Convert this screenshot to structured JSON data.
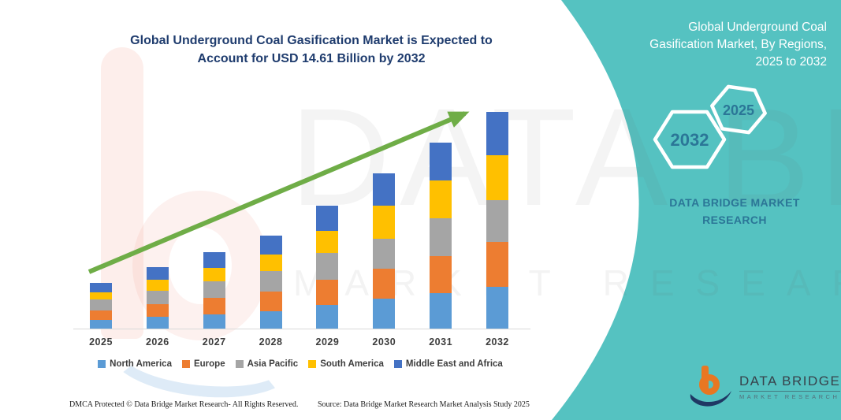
{
  "chart_data": {
    "type": "bar",
    "stacked": true,
    "title": "Global Underground Coal Gasification Market is Expected to Account for USD 14.61 Billion by 2032",
    "title_lines": [
      "Global Underground Coal Gasification Market is Expected to",
      "Account for USD 14.61 Billion by 2032"
    ],
    "unit": "USD Billion",
    "categories": [
      "2025",
      "2026",
      "2027",
      "2028",
      "2029",
      "2030",
      "2031",
      "2032"
    ],
    "series": [
      {
        "name": "North America",
        "color": "#5B9BD5",
        "values": [
          0.59,
          0.79,
          0.98,
          1.19,
          1.57,
          2.0,
          2.39,
          2.8
        ]
      },
      {
        "name": "Europe",
        "color": "#ED7D31",
        "values": [
          0.66,
          0.87,
          1.08,
          1.32,
          1.74,
          2.04,
          2.51,
          3.04
        ]
      },
      {
        "name": "Asia Pacific",
        "color": "#A5A5A5",
        "values": [
          0.72,
          0.91,
          1.13,
          1.38,
          1.82,
          2.04,
          2.57,
          2.83
        ]
      },
      {
        "name": "South America",
        "color": "#FFC000",
        "values": [
          0.49,
          0.74,
          0.93,
          1.13,
          1.49,
          2.22,
          2.51,
          3.02
        ]
      },
      {
        "name": "Middle East and Africa",
        "color": "#4472C4",
        "values": [
          0.62,
          0.83,
          1.03,
          1.25,
          1.66,
          2.16,
          2.55,
          2.92
        ]
      }
    ],
    "totals": [
      3.08,
      4.14,
      5.15,
      6.27,
      8.28,
      10.46,
      12.53,
      14.61
    ],
    "ylim": [
      0,
      14.61
    ],
    "grid": false,
    "y_axis_visible": false,
    "legend_position": "bottom",
    "trend_arrow": {
      "present": true,
      "color": "#6FAD47"
    }
  },
  "side_panel": {
    "background": "#55C2C1",
    "text_color": "#2B7697",
    "title_lines": [
      "Global Underground Coal",
      "Gasification Market, By Regions,",
      "2025 to 2032"
    ],
    "hexagon_labels": {
      "large": "2032",
      "small": "2025"
    },
    "brand_lines": [
      "DATA BRIDGE MARKET",
      "RESEARCH"
    ]
  },
  "watermark": {
    "big_text": "DATA BRIDGE",
    "sub_text": "MARKET RESEARCH"
  },
  "logo": {
    "name_top": "DATA BRIDGE",
    "name_bottom": "MARKET RESEARCH",
    "b_color": "#E87722",
    "swoosh_color": "#1F3864"
  },
  "footer": {
    "left": "DMCA Protected © Data Bridge Market Research-  All Rights Reserved.",
    "right": "Source: Data Bridge Market Research  Market Analysis Study 2025"
  }
}
